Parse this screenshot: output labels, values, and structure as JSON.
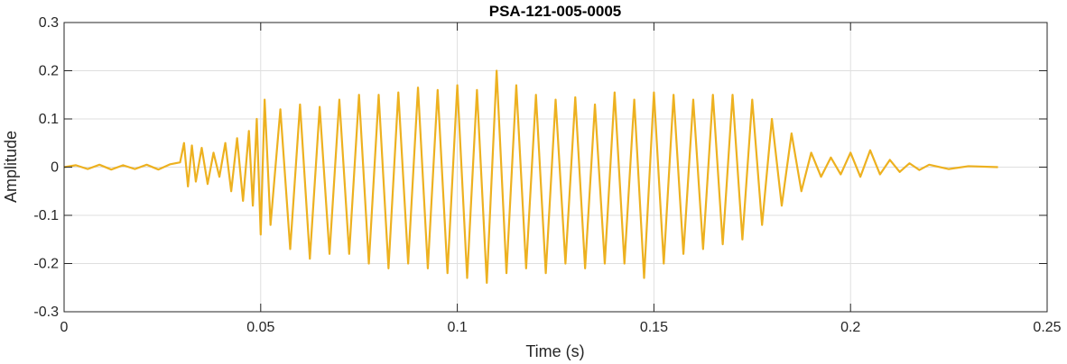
{
  "chart_data": {
    "type": "line",
    "title": "PSA-121-005-0005",
    "xlabel": "Time (s)",
    "ylabel": "Amplitude",
    "xlim": [
      0,
      0.25
    ],
    "ylim": [
      -0.3,
      0.3
    ],
    "xticks": [
      0,
      0.05,
      0.1,
      0.15,
      0.2,
      0.25
    ],
    "xtick_labels": [
      "0",
      "0.05",
      "0.1",
      "0.15",
      "0.2",
      "0.25"
    ],
    "yticks": [
      -0.3,
      -0.2,
      -0.1,
      0,
      0.1,
      0.2,
      0.3
    ],
    "ytick_labels": [
      "-0.3",
      "-0.2",
      "-0.1",
      "0",
      "0.1",
      "0.2",
      "0.3"
    ],
    "grid": true,
    "series": [
      {
        "color": "#EDB120",
        "x": [
          0,
          0.003,
          0.006,
          0.009,
          0.012,
          0.015,
          0.018,
          0.021,
          0.024,
          0.027,
          0.0295,
          0.0305,
          0.0315,
          0.0325,
          0.0335,
          0.035,
          0.0365,
          0.038,
          0.0395,
          0.041,
          0.0425,
          0.044,
          0.0455,
          0.047,
          0.048,
          0.049,
          0.05,
          0.051,
          0.0525,
          0.055,
          0.0575,
          0.06,
          0.0625,
          0.065,
          0.0675,
          0.07,
          0.0725,
          0.075,
          0.0775,
          0.08,
          0.0825,
          0.085,
          0.0875,
          0.09,
          0.0925,
          0.095,
          0.0975,
          0.1,
          0.1025,
          0.105,
          0.1075,
          0.11,
          0.1125,
          0.115,
          0.1175,
          0.12,
          0.1225,
          0.125,
          0.1275,
          0.13,
          0.1325,
          0.135,
          0.1375,
          0.14,
          0.1425,
          0.145,
          0.1475,
          0.15,
          0.1525,
          0.155,
          0.1575,
          0.16,
          0.1625,
          0.165,
          0.1675,
          0.17,
          0.1725,
          0.175,
          0.1775,
          0.18,
          0.1825,
          0.185,
          0.1875,
          0.19,
          0.1925,
          0.195,
          0.1975,
          0.2,
          0.2025,
          0.205,
          0.2075,
          0.21,
          0.2125,
          0.215,
          0.2175,
          0.22,
          0.225,
          0.23,
          0.2375
        ],
        "y": [
          0,
          0.004,
          -0.004,
          0.005,
          -0.005,
          0.004,
          -0.004,
          0.005,
          -0.005,
          0.006,
          0.01,
          0.05,
          -0.04,
          0.045,
          -0.03,
          0.04,
          -0.035,
          0.03,
          -0.02,
          0.05,
          -0.05,
          0.06,
          -0.07,
          0.075,
          -0.08,
          0.1,
          -0.14,
          0.14,
          -0.12,
          0.12,
          -0.17,
          0.13,
          -0.19,
          0.125,
          -0.18,
          0.14,
          -0.18,
          0.15,
          -0.2,
          0.15,
          -0.21,
          0.155,
          -0.2,
          0.165,
          -0.21,
          0.16,
          -0.22,
          0.17,
          -0.23,
          0.16,
          -0.24,
          0.2,
          -0.22,
          0.17,
          -0.21,
          0.15,
          -0.22,
          0.14,
          -0.2,
          0.145,
          -0.21,
          0.13,
          -0.2,
          0.155,
          -0.2,
          0.14,
          -0.23,
          0.155,
          -0.2,
          0.15,
          -0.18,
          0.14,
          -0.17,
          0.15,
          -0.16,
          0.15,
          -0.15,
          0.14,
          -0.12,
          0.1,
          -0.08,
          0.07,
          -0.05,
          0.03,
          -0.02,
          0.02,
          -0.015,
          0.03,
          -0.02,
          0.035,
          -0.015,
          0.015,
          -0.01,
          0.008,
          -0.006,
          0.005,
          -0.004,
          0.002,
          0
        ]
      }
    ]
  }
}
